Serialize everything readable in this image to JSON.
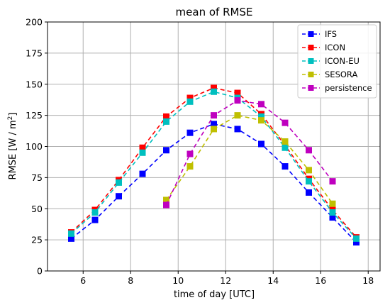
{
  "chart_data": {
    "type": "line",
    "title": "mean of RMSE",
    "xlabel": "time of day [UTC]",
    "ylabel_main": "RMSE [W / m",
    "ylabel_sup": "2",
    "ylabel_end": "]",
    "xlim": [
      4.5,
      18.5
    ],
    "ylim": [
      0,
      200
    ],
    "xticks": [
      6,
      8,
      10,
      12,
      14,
      16,
      18
    ],
    "yticks": [
      0,
      25,
      50,
      75,
      100,
      125,
      150,
      175,
      200
    ],
    "grid": true,
    "legend_position": "top-right",
    "series": [
      {
        "name": "IFS",
        "color": "#0000ff",
        "x": [
          5.5,
          6.5,
          7.5,
          8.5,
          9.5,
          10.5,
          11.5,
          12.5,
          13.5,
          14.5,
          15.5,
          16.5,
          17.5
        ],
        "y": [
          26,
          41,
          60,
          78,
          97,
          111,
          118,
          114,
          102,
          84,
          63,
          43,
          23
        ]
      },
      {
        "name": "ICON",
        "color": "#ff0000",
        "x": [
          5.5,
          6.5,
          7.5,
          8.5,
          9.5,
          10.5,
          11.5,
          12.5,
          13.5,
          14.5,
          15.5,
          16.5,
          17.5
        ],
        "y": [
          31,
          49,
          73,
          99,
          124,
          139,
          147,
          143,
          126,
          101,
          74,
          49,
          27
        ]
      },
      {
        "name": "ICON-EU",
        "color": "#00bfbf",
        "x": [
          5.5,
          6.5,
          7.5,
          8.5,
          9.5,
          10.5,
          11.5,
          12.5,
          13.5,
          14.5,
          15.5,
          16.5,
          17.5
        ],
        "y": [
          30,
          47,
          71,
          95,
          120,
          136,
          144,
          139,
          124,
          99,
          72,
          47,
          26
        ]
      },
      {
        "name": "SESORA",
        "color": "#bfbf00",
        "x": [
          9.5,
          10.5,
          11.5,
          12.5,
          13.5,
          14.5,
          15.5,
          16.5
        ],
        "y": [
          57,
          84,
          114,
          125,
          121,
          104,
          81,
          54
        ]
      },
      {
        "name": "persistence",
        "color": "#bf00bf",
        "x": [
          9.5,
          10.5,
          11.5,
          12.5,
          13.5,
          14.5,
          15.5,
          16.5
        ],
        "y": [
          53,
          94,
          125,
          137,
          134,
          119,
          97,
          72
        ]
      }
    ]
  }
}
